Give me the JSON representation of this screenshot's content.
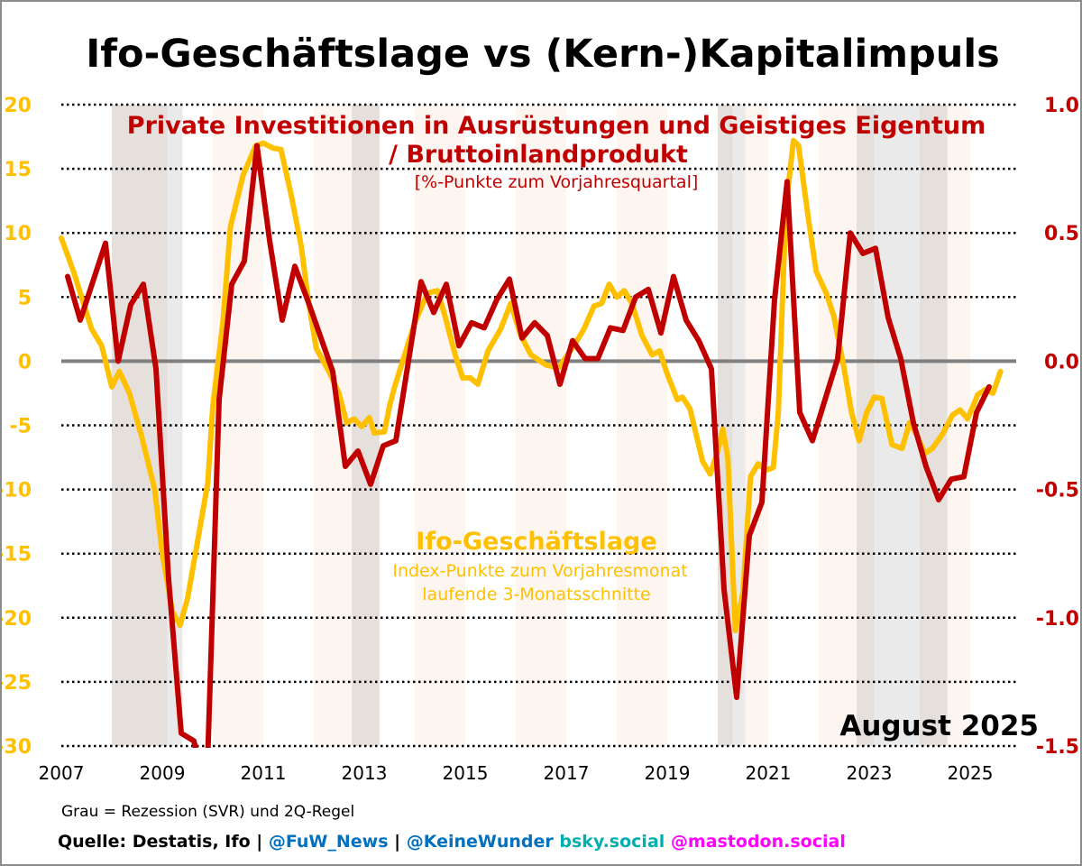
{
  "chart_data": {
    "type": "line",
    "title": "Ifo-Geschäftslage vs (Kern-)Kapitalimpuls",
    "date_label": "August 2025",
    "x_ticks": [
      "2007",
      "2009",
      "2011",
      "2013",
      "2015",
      "2017",
      "2019",
      "2021",
      "2023",
      "2025"
    ],
    "xlim": [
      2007,
      2025.9
    ],
    "left_axis": {
      "ylim": [
        -30,
        20
      ],
      "ticks": [
        "20",
        "15",
        "10",
        "5",
        "0",
        "-5",
        "-10",
        "-15",
        "-20",
        "-25",
        "-30"
      ],
      "color": "#FFC000"
    },
    "right_axis": {
      "ylim": [
        -1.5,
        1.0
      ],
      "ticks": [
        "1.0",
        "0.5",
        "0.0",
        "-0.5",
        "-1.0",
        "-1.5"
      ],
      "color": "#C00000"
    },
    "grid": "horizontal dotted",
    "series": [
      {
        "name": "Ifo-Geschäftslage",
        "label_line2": "Index-Punkte zum Vorjahresmonat",
        "label_line3": "laufende 3-Monatsschnitte",
        "axis": "left",
        "color": "#FFC000",
        "x": [
          2007.0,
          2007.25,
          2007.4,
          2007.6,
          2007.8,
          2008.0,
          2008.15,
          2008.35,
          2008.6,
          2008.85,
          2009.0,
          2009.2,
          2009.35,
          2009.5,
          2009.7,
          2009.9,
          2010.0,
          2010.2,
          2010.35,
          2010.6,
          2010.85,
          2011.0,
          2011.2,
          2011.35,
          2011.55,
          2011.75,
          2011.9,
          2012.05,
          2012.3,
          2012.5,
          2012.65,
          2012.8,
          2012.95,
          2013.1,
          2013.2,
          2013.4,
          2013.5,
          2013.6,
          2013.8,
          2014.0,
          2014.25,
          2014.45,
          2014.6,
          2014.8,
          2014.95,
          2015.1,
          2015.25,
          2015.45,
          2015.7,
          2015.9,
          2016.1,
          2016.3,
          2016.6,
          2016.85,
          2017.15,
          2017.35,
          2017.55,
          2017.7,
          2017.85,
          2018.0,
          2018.15,
          2018.3,
          2018.5,
          2018.7,
          2018.85,
          2019.0,
          2019.2,
          2019.3,
          2019.45,
          2019.7,
          2019.85,
          2020.0,
          2020.1,
          2020.2,
          2020.35,
          2020.5,
          2020.65,
          2020.8,
          2020.95,
          2021.1,
          2021.2,
          2021.35,
          2021.5,
          2021.6,
          2021.8,
          2021.95,
          2022.15,
          2022.3,
          2022.5,
          2022.65,
          2022.8,
          2022.95,
          2023.1,
          2023.25,
          2023.45,
          2023.65,
          2023.8,
          2023.95,
          2024.1,
          2024.25,
          2024.45,
          2024.65,
          2024.8,
          2024.95,
          2025.15,
          2025.3,
          2025.45,
          2025.6
        ],
        "values": [
          9.6,
          6.9,
          5.0,
          2.5,
          1.2,
          -2.0,
          -0.8,
          -2.5,
          -6.0,
          -10.0,
          -15.0,
          -19.5,
          -20.6,
          -18.5,
          -14.0,
          -9.5,
          -3.5,
          3.0,
          10.5,
          14.5,
          16.8,
          17.0,
          16.6,
          16.5,
          13.0,
          9.0,
          4.5,
          1.0,
          -0.8,
          -2.5,
          -4.8,
          -4.5,
          -5.1,
          -4.4,
          -5.6,
          -5.5,
          -3.5,
          -2.0,
          0.5,
          3.0,
          5.3,
          5.5,
          3.5,
          0.5,
          -1.3,
          -1.3,
          -1.8,
          0.8,
          2.5,
          4.5,
          2.0,
          0.5,
          -0.3,
          -0.5,
          1.2,
          2.5,
          4.3,
          4.5,
          6.0,
          5.0,
          5.5,
          4.5,
          2.0,
          0.5,
          0.8,
          -1.0,
          -3.0,
          -2.8,
          -3.7,
          -7.8,
          -8.8,
          -7.0,
          -5.3,
          -7.5,
          -21.0,
          -18.0,
          -9.0,
          -8.0,
          -8.5,
          -8.3,
          -4.0,
          12.0,
          17.2,
          16.8,
          11.0,
          7.0,
          5.3,
          3.5,
          -0.5,
          -4.0,
          -6.2,
          -4.0,
          -2.8,
          -2.9,
          -6.5,
          -6.8,
          -4.8,
          -5.8,
          -7.2,
          -6.8,
          -5.7,
          -4.2,
          -3.8,
          -4.5,
          -2.6,
          -2.2,
          -2.5,
          -0.8
        ]
      },
      {
        "name": "Private Investitionen in Ausrüstungen und Geistiges Eigentum",
        "label_line2": "/ Bruttoinlandprodukt",
        "label_line3": "[%-Punkte zum Vorjahresquartal]",
        "axis": "right",
        "color": "#C00000",
        "x_start_quarter": "2007-Q1",
        "values": [
          0.33,
          0.16,
          0.31,
          0.46,
          0.0,
          0.22,
          0.3,
          -0.03,
          -0.85,
          -1.45,
          -1.48,
          -1.7,
          -0.15,
          0.3,
          0.39,
          0.84,
          0.47,
          0.16,
          0.37,
          0.24,
          0.1,
          -0.04,
          -0.41,
          -0.35,
          -0.48,
          -0.33,
          -0.31,
          0.0,
          0.31,
          0.19,
          0.3,
          0.06,
          0.15,
          0.13,
          0.24,
          0.32,
          0.09,
          0.15,
          0.1,
          -0.09,
          0.08,
          0.01,
          0.01,
          0.13,
          0.12,
          0.25,
          0.28,
          0.11,
          0.33,
          0.16,
          0.08,
          -0.03,
          -0.89,
          -1.31,
          -0.68,
          -0.55,
          0.24,
          0.7,
          -0.2,
          -0.31,
          -0.15,
          0.01,
          0.5,
          0.42,
          0.44,
          0.17,
          0.01,
          -0.24,
          -0.41,
          -0.54,
          -0.46,
          -0.45,
          -0.2,
          -0.1
        ]
      }
    ],
    "shaded_periods": [
      {
        "from": 2008.0,
        "to": 2009.1,
        "kind": "recession-svr"
      },
      {
        "from": 2009.1,
        "to": 2009.4,
        "kind": "2q-rule"
      },
      {
        "from": 2010.0,
        "to": 2011.0,
        "kind": "light"
      },
      {
        "from": 2012.0,
        "to": 2012.75,
        "kind": "light"
      },
      {
        "from": 2012.75,
        "to": 2013.3,
        "kind": "recession-svr"
      },
      {
        "from": 2014.0,
        "to": 2015.0,
        "kind": "light"
      },
      {
        "from": 2016.0,
        "to": 2017.0,
        "kind": "light"
      },
      {
        "from": 2018.0,
        "to": 2019.0,
        "kind": "light"
      },
      {
        "from": 2020.0,
        "to": 2020.3,
        "kind": "recession-svr"
      },
      {
        "from": 2020.3,
        "to": 2020.55,
        "kind": "2q-rule"
      },
      {
        "from": 2020.55,
        "to": 2021.0,
        "kind": "light"
      },
      {
        "from": 2022.0,
        "to": 2022.75,
        "kind": "light"
      },
      {
        "from": 2022.75,
        "to": 2023.1,
        "kind": "recession-svr"
      },
      {
        "from": 2023.1,
        "to": 2024.0,
        "kind": "2q-rule"
      },
      {
        "from": 2024.0,
        "to": 2024.55,
        "kind": "recession-svr"
      },
      {
        "from": 2024.55,
        "to": 2025.0,
        "kind": "light"
      }
    ],
    "colors": {
      "recession-svr": "#E6E0DC",
      "2q-rule": "#EAEAEA",
      "light": "#FDF5F0",
      "zero_line": "#808080"
    }
  },
  "footer": {
    "note": "Grau = Rezession (SVR) und 2Q-Regel",
    "source": "Quelle: Destatis, Ifo | ",
    "fuw": "@FuW_News",
    "sep": " | ",
    "keinewunder": "@KeineWunder",
    "bsky": " bsky.social",
    "mastodon": " @mastodon.social",
    "colors": {
      "fuw": "#0070C0",
      "bsky": "#00B0B0",
      "mastodon": "#FF00FF"
    }
  }
}
